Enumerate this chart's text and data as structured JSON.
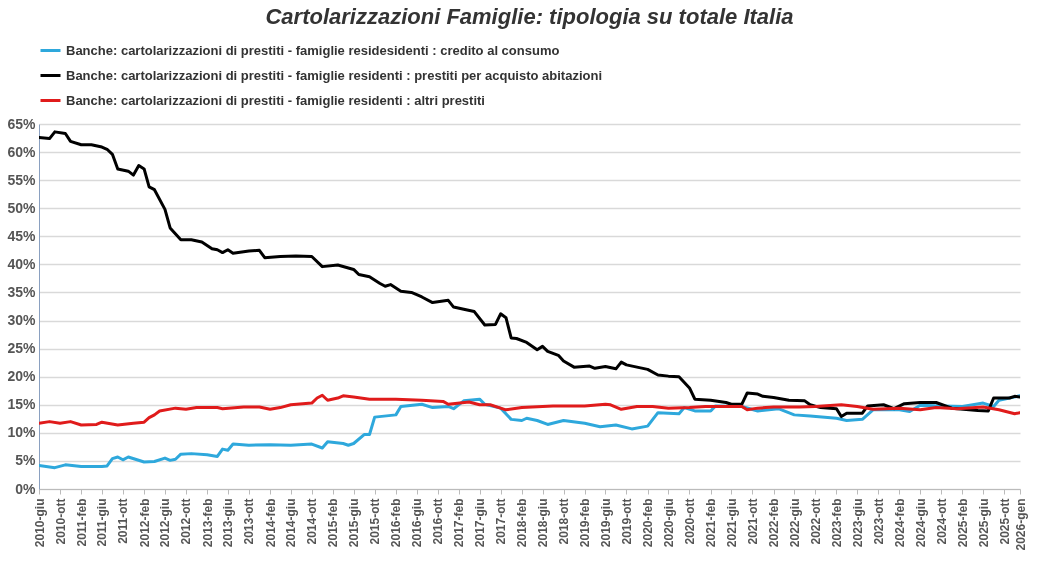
{
  "chart_data": {
    "type": "line",
    "title": "Cartolarizzazioni Famiglie:  tipologia su totale Italia",
    "legend": "top",
    "grid": "y",
    "line_style": "solid",
    "xlim": [
      "2010-06",
      "2026-01"
    ],
    "xticks": [
      {
        "value": "2010-06",
        "label": "2010-giu"
      },
      {
        "value": "2010-10",
        "label": "2010-ott"
      },
      {
        "value": "2011-02",
        "label": "2011-feb"
      },
      {
        "value": "2011-06",
        "label": "2011-giu"
      },
      {
        "value": "2011-10",
        "label": "2011-ott"
      },
      {
        "value": "2012-02",
        "label": "2012-feb"
      },
      {
        "value": "2012-06",
        "label": "2012-giu"
      },
      {
        "value": "2012-10",
        "label": "2012-ott"
      },
      {
        "value": "2013-02",
        "label": "2013-feb"
      },
      {
        "value": "2013-06",
        "label": "2013-giu"
      },
      {
        "value": "2013-10",
        "label": "2013-ott"
      },
      {
        "value": "2014-02",
        "label": "2014-feb"
      },
      {
        "value": "2014-06",
        "label": "2014-giu"
      },
      {
        "value": "2014-10",
        "label": "2014-ott"
      },
      {
        "value": "2015-02",
        "label": "2015-feb"
      },
      {
        "value": "2015-06",
        "label": "2015-giu"
      },
      {
        "value": "2015-10",
        "label": "2015-ott"
      },
      {
        "value": "2016-02",
        "label": "2016-feb"
      },
      {
        "value": "2016-06",
        "label": "2016-giu"
      },
      {
        "value": "2016-10",
        "label": "2016-ott"
      },
      {
        "value": "2017-02",
        "label": "2017-feb"
      },
      {
        "value": "2017-06",
        "label": "2017-giu"
      },
      {
        "value": "2017-10",
        "label": "2017-ott"
      },
      {
        "value": "2018-02",
        "label": "2018-feb"
      },
      {
        "value": "2018-06",
        "label": "2018-giu"
      },
      {
        "value": "2018-10",
        "label": "2018-ott"
      },
      {
        "value": "2019-02",
        "label": "2019-feb"
      },
      {
        "value": "2019-06",
        "label": "2019-giu"
      },
      {
        "value": "2019-10",
        "label": "2019-ott"
      },
      {
        "value": "2020-02",
        "label": "2020-feb"
      },
      {
        "value": "2020-06",
        "label": "2020-giu"
      },
      {
        "value": "2020-10",
        "label": "2020-ott"
      },
      {
        "value": "2021-02",
        "label": "2021-feb"
      },
      {
        "value": "2021-06",
        "label": "2021-giu"
      },
      {
        "value": "2021-10",
        "label": "2021-ott"
      },
      {
        "value": "2022-02",
        "label": "2022-feb"
      },
      {
        "value": "2022-06",
        "label": "2022-giu"
      },
      {
        "value": "2022-10",
        "label": "2022-ott"
      },
      {
        "value": "2023-02",
        "label": "2023-feb"
      },
      {
        "value": "2023-06",
        "label": "2023-giu"
      },
      {
        "value": "2023-10",
        "label": "2023-ott"
      },
      {
        "value": "2024-02",
        "label": "2024-feb"
      },
      {
        "value": "2024-06",
        "label": "2024-giu"
      },
      {
        "value": "2024-10",
        "label": "2024-ott"
      },
      {
        "value": "2025-02",
        "label": "2025-feb"
      },
      {
        "value": "2025-06",
        "label": "2025-giu"
      },
      {
        "value": "2025-10",
        "label": "2025-ott"
      },
      {
        "value": "2026-01",
        "label": "2026-gen"
      }
    ],
    "ylim": [
      0,
      65
    ],
    "yticks": [
      {
        "value": 0,
        "label": "0%"
      },
      {
        "value": 5,
        "label": "5%"
      },
      {
        "value": 10,
        "label": "10%"
      },
      {
        "value": 15,
        "label": "15%"
      },
      {
        "value": 20,
        "label": "20%"
      },
      {
        "value": 25,
        "label": "25%"
      },
      {
        "value": 30,
        "label": "30%"
      },
      {
        "value": 35,
        "label": "35%"
      },
      {
        "value": 40,
        "label": "40%"
      },
      {
        "value": 45,
        "label": "45%"
      },
      {
        "value": 50,
        "label": "50%"
      },
      {
        "value": 55,
        "label": "55%"
      },
      {
        "value": 60,
        "label": "60%"
      },
      {
        "value": 65,
        "label": "65%"
      }
    ],
    "series": [
      {
        "name": "Banche: cartolarizzazioni di prestiti - famiglie residesidenti : credito al consumo",
        "color": "#2ea8dc",
        "x": [
          "2010-06",
          "2010-09",
          "2010-11",
          "2011-02",
          "2011-06",
          "2011-07",
          "2011-08",
          "2011-09",
          "2011-10",
          "2011-11",
          "2012-02",
          "2012-04",
          "2012-06",
          "2012-07",
          "2012-08",
          "2012-09",
          "2012-11",
          "2013-02",
          "2013-04",
          "2013-05",
          "2013-06",
          "2013-07",
          "2013-10",
          "2014-02",
          "2014-06",
          "2014-10",
          "2014-12",
          "2015-01",
          "2015-04",
          "2015-05",
          "2015-06",
          "2015-08",
          "2015-09",
          "2015-10",
          "2016-02",
          "2016-03",
          "2016-07",
          "2016-09",
          "2016-12",
          "2017-01",
          "2017-03",
          "2017-06",
          "2017-07",
          "2017-10",
          "2017-12",
          "2018-02",
          "2018-03",
          "2018-05",
          "2018-07",
          "2018-10",
          "2019-02",
          "2019-05",
          "2019-08",
          "2019-11",
          "2020-02",
          "2020-04",
          "2020-08",
          "2020-09",
          "2020-11",
          "2021-02",
          "2021-03",
          "2021-08",
          "2021-11",
          "2022-03",
          "2022-06",
          "2022-09",
          "2023-02",
          "2023-04",
          "2023-07",
          "2023-09",
          "2024-02",
          "2024-04",
          "2024-06",
          "2024-10",
          "2025-02",
          "2025-06",
          "2025-08",
          "2025-09",
          "2026-01"
        ],
        "values": [
          4.2,
          3.8,
          4.3,
          4.0,
          4.0,
          4.1,
          5.4,
          5.7,
          5.2,
          5.7,
          4.8,
          4.9,
          5.5,
          5.1,
          5.3,
          6.2,
          6.3,
          6.1,
          5.8,
          7.1,
          6.9,
          8.0,
          7.8,
          7.9,
          7.8,
          8.0,
          7.3,
          8.4,
          8.1,
          7.8,
          8.1,
          9.7,
          9.7,
          12.8,
          13.2,
          14.7,
          15.1,
          14.5,
          14.7,
          14.3,
          15.7,
          16.0,
          15.1,
          14.4,
          12.4,
          12.2,
          12.6,
          12.2,
          11.5,
          12.2,
          11.7,
          11.1,
          11.4,
          10.7,
          11.2,
          13.6,
          13.4,
          14.5,
          13.9,
          13.9,
          14.8,
          14.7,
          13.9,
          14.3,
          13.2,
          13.0,
          12.6,
          12.2,
          12.4,
          14.1,
          14.1,
          13.8,
          14.9,
          14.8,
          14.7,
          15.3,
          14.7,
          15.8,
          16.6
        ]
      },
      {
        "name": "Banche: cartolarizzazioni di prestiti - famiglie residenti : prestiti per acquisto abitazioni",
        "color": "#000000",
        "x": [
          "2010-06",
          "2010-08",
          "2010-09",
          "2010-11",
          "2010-12",
          "2011-02",
          "2011-04",
          "2011-06",
          "2011-07",
          "2011-08",
          "2011-09",
          "2011-11",
          "2011-12",
          "2012-01",
          "2012-02",
          "2012-03",
          "2012-04",
          "2012-06",
          "2012-07",
          "2012-09",
          "2012-11",
          "2013-01",
          "2013-03",
          "2013-04",
          "2013-05",
          "2013-06",
          "2013-07",
          "2013-10",
          "2013-12",
          "2014-01",
          "2014-04",
          "2014-07",
          "2014-10",
          "2014-12",
          "2015-03",
          "2015-06",
          "2015-07",
          "2015-09",
          "2015-11",
          "2015-12",
          "2016-01",
          "2016-03",
          "2016-05",
          "2016-06",
          "2016-07",
          "2016-09",
          "2016-12",
          "2017-01",
          "2017-03",
          "2017-05",
          "2017-07",
          "2017-09",
          "2017-10",
          "2017-11",
          "2017-12",
          "2018-01",
          "2018-03",
          "2018-05",
          "2018-06",
          "2018-07",
          "2018-09",
          "2018-10",
          "2018-12",
          "2019-03",
          "2019-04",
          "2019-06",
          "2019-08",
          "2019-09",
          "2019-10",
          "2020-02",
          "2020-04",
          "2020-06",
          "2020-08",
          "2020-10",
          "2020-11",
          "2021-02",
          "2021-05",
          "2021-06",
          "2021-08",
          "2021-09",
          "2021-11",
          "2021-12",
          "2022-02",
          "2022-05",
          "2022-08",
          "2022-09",
          "2022-11",
          "2023-02",
          "2023-03",
          "2023-04",
          "2023-07",
          "2023-08",
          "2023-11",
          "2024-01",
          "2024-03",
          "2024-06",
          "2024-09",
          "2024-12",
          "2025-05",
          "2025-07",
          "2025-08",
          "2025-11",
          "2025-12",
          "2026-01"
        ],
        "values": [
          62.6,
          62.4,
          63.6,
          63.3,
          61.9,
          61.3,
          61.3,
          60.9,
          60.5,
          59.6,
          57.0,
          56.6,
          55.9,
          57.6,
          57.0,
          53.8,
          53.3,
          49.8,
          46.5,
          44.4,
          44.4,
          44.0,
          42.8,
          42.6,
          42.1,
          42.6,
          42.0,
          42.4,
          42.5,
          41.2,
          41.4,
          41.5,
          41.4,
          39.6,
          39.9,
          39.1,
          38.2,
          37.8,
          36.6,
          36.1,
          36.4,
          35.2,
          35.0,
          34.6,
          34.2,
          33.2,
          33.6,
          32.4,
          32.0,
          31.6,
          29.2,
          29.3,
          31.2,
          30.5,
          26.9,
          26.8,
          26.1,
          24.8,
          25.4,
          24.5,
          23.8,
          22.8,
          21.7,
          21.9,
          21.5,
          21.8,
          21.4,
          22.6,
          22.1,
          21.3,
          20.3,
          20.1,
          20.0,
          18.0,
          16.0,
          15.8,
          15.4,
          15.1,
          15.1,
          17.1,
          16.9,
          16.5,
          16.3,
          15.8,
          15.7,
          15.0,
          14.5,
          14.3,
          12.9,
          13.5,
          13.5,
          14.8,
          15.0,
          14.3,
          15.2,
          15.4,
          15.4,
          14.4,
          14.0,
          13.9,
          16.2,
          16.2,
          16.5,
          16.4
        ]
      },
      {
        "name": "Banche: cartolarizzazioni di prestiti - famiglie residenti : altri prestiti",
        "color": "#e01b1b",
        "x": [
          "2010-06",
          "2010-08",
          "2010-10",
          "2010-12",
          "2011-02",
          "2011-05",
          "2011-06",
          "2011-09",
          "2011-12",
          "2012-02",
          "2012-03",
          "2012-04",
          "2012-05",
          "2012-08",
          "2012-10",
          "2012-12",
          "2013-04",
          "2013-05",
          "2013-09",
          "2013-12",
          "2014-02",
          "2014-04",
          "2014-06",
          "2014-10",
          "2014-11",
          "2014-12",
          "2015-01",
          "2015-03",
          "2015-04",
          "2015-06",
          "2015-09",
          "2016-02",
          "2016-07",
          "2016-11",
          "2016-12",
          "2017-04",
          "2017-06",
          "2017-08",
          "2017-11",
          "2018-02",
          "2018-08",
          "2019-02",
          "2019-06",
          "2019-07",
          "2019-09",
          "2019-12",
          "2020-03",
          "2020-06",
          "2020-10",
          "2021-01",
          "2021-08",
          "2021-09",
          "2021-11",
          "2022-02",
          "2022-07",
          "2022-10",
          "2023-03",
          "2023-06",
          "2023-09",
          "2024-02",
          "2024-06",
          "2024-09",
          "2025-01",
          "2025-06",
          "2025-09",
          "2025-12",
          "2026-01"
        ],
        "values": [
          11.7,
          12.0,
          11.7,
          12.0,
          11.4,
          11.5,
          11.9,
          11.4,
          11.7,
          11.9,
          12.7,
          13.2,
          13.9,
          14.4,
          14.2,
          14.5,
          14.5,
          14.3,
          14.6,
          14.6,
          14.2,
          14.5,
          15.0,
          15.3,
          16.2,
          16.7,
          15.8,
          16.2,
          16.6,
          16.4,
          16.0,
          16.0,
          15.8,
          15.6,
          15.1,
          15.5,
          15.0,
          15.0,
          14.1,
          14.5,
          14.8,
          14.8,
          15.1,
          15.0,
          14.2,
          14.7,
          14.7,
          14.4,
          14.5,
          14.7,
          14.7,
          14.1,
          14.4,
          14.6,
          14.6,
          14.7,
          15.0,
          14.7,
          14.2,
          14.4,
          14.1,
          14.5,
          14.3,
          14.6,
          14.1,
          13.4,
          13.6
        ]
      }
    ]
  }
}
